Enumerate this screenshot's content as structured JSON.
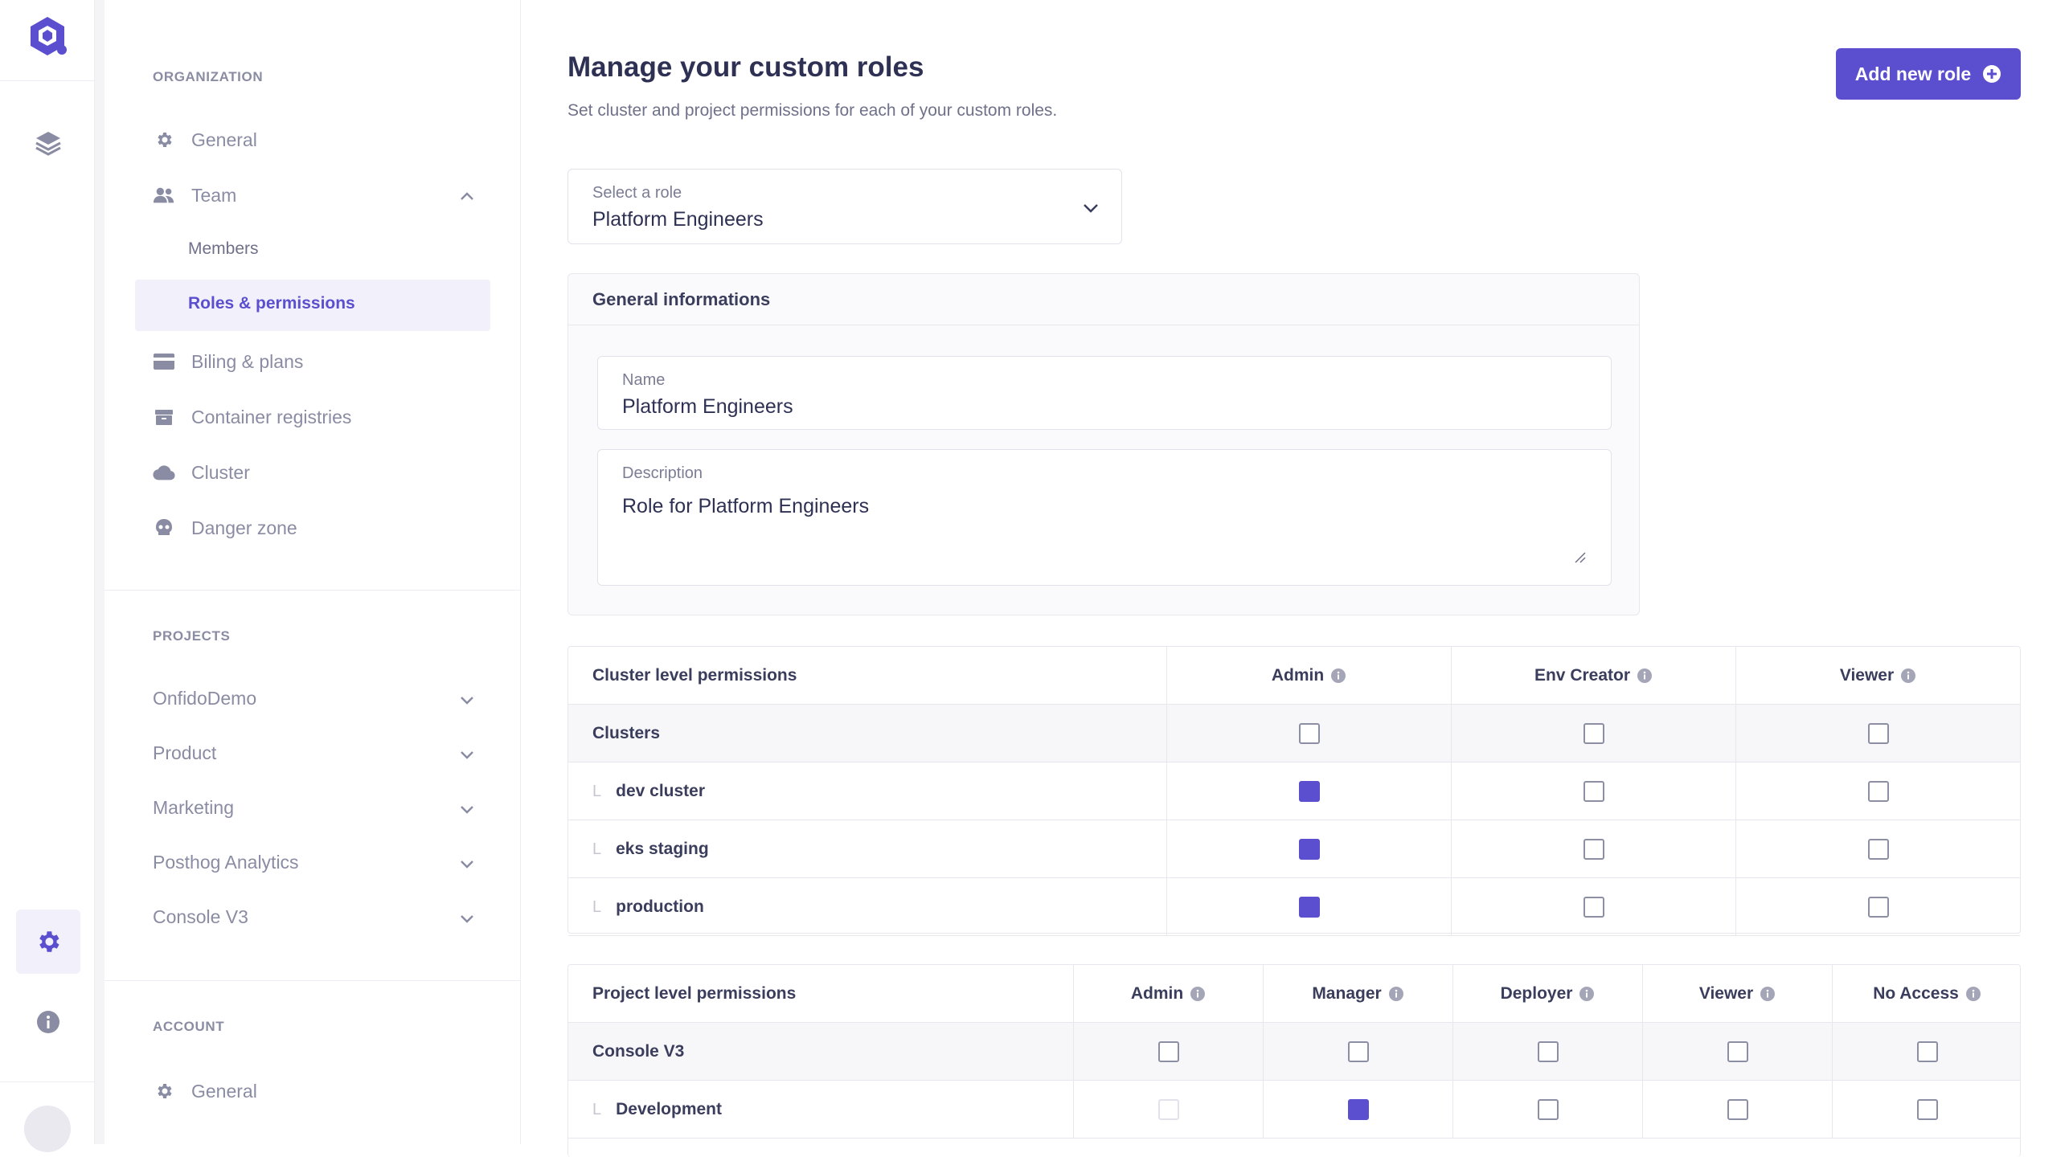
{
  "sidebar": {
    "organization_title": "ORGANIZATION",
    "org_items": [
      {
        "label": "General",
        "icon": "gear-icon"
      },
      {
        "label": "Team",
        "icon": "users-icon"
      },
      {
        "label": "Members"
      },
      {
        "label": "Roles & permissions"
      },
      {
        "label": "Biling & plans",
        "icon": "credit-card-icon"
      },
      {
        "label": "Container registries",
        "icon": "box-icon"
      },
      {
        "label": "Cluster",
        "icon": "cloud-icon"
      },
      {
        "label": "Danger zone",
        "icon": "skull-icon"
      }
    ],
    "projects_title": "PROJECTS",
    "projects": [
      "OnfidoDemo",
      "Product",
      "Marketing",
      "Posthog Analytics",
      "Console V3"
    ],
    "account_title": "ACCOUNT",
    "account_items": [
      {
        "label": "General",
        "icon": "gear-icon"
      }
    ]
  },
  "header": {
    "title": "Manage your custom roles",
    "subtitle": "Set cluster and project permissions for each of your custom roles.",
    "add_button": "Add new role"
  },
  "role_select": {
    "label": "Select a role",
    "value": "Platform Engineers"
  },
  "general_info": {
    "title": "General informations",
    "name_label": "Name",
    "name_value": "Platform Engineers",
    "description_label": "Description",
    "description_value": "Role for Platform Engineers"
  },
  "cluster_perms": {
    "title": "Cluster level permissions",
    "columns": [
      "Admin",
      "Env Creator",
      "Viewer"
    ],
    "rows": [
      {
        "label": "Clusters",
        "child": false,
        "checked": [
          false,
          false,
          false
        ]
      },
      {
        "label": "dev cluster",
        "child": true,
        "checked": [
          true,
          false,
          false
        ]
      },
      {
        "label": "eks staging",
        "child": true,
        "checked": [
          true,
          false,
          false
        ]
      },
      {
        "label": "production",
        "child": true,
        "checked": [
          true,
          false,
          false
        ]
      }
    ]
  },
  "project_perms": {
    "title": "Project level permissions",
    "columns": [
      "Admin",
      "Manager",
      "Deployer",
      "Viewer",
      "No Access"
    ],
    "rows": [
      {
        "label": "Console V3",
        "child": false,
        "checked": [
          false,
          false,
          false,
          false,
          false
        ]
      },
      {
        "label": "Development",
        "child": true,
        "checked": [
          "disabled",
          true,
          false,
          false,
          false
        ]
      }
    ]
  },
  "colors": {
    "accent": "#5b4fcf",
    "muted": "#8a8ca3"
  }
}
